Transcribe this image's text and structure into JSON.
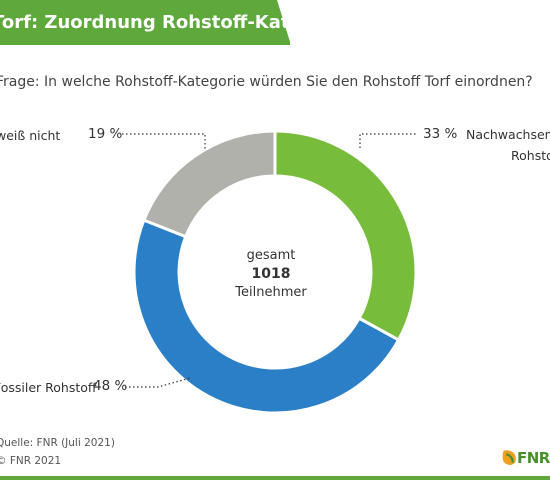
{
  "title": "Torf: Zuordnung Rohstoff-Kategorie",
  "question": "Frage: In welche Rohstoff-Kategorie würden Sie den Rohstoff Torf einordnen?",
  "center": {
    "line1": "gesamt",
    "line2": "1018",
    "line3": "Teilnehmer"
  },
  "labels": {
    "weiss_nicht": "weiß nicht",
    "nachwachsend_line1": "Nachwachsender",
    "nachwachsend_line2": "Rohstoff",
    "fossil": "Fossiler Rohstoff"
  },
  "source": "Quelle: FNR (Juli 2021)",
  "copyright": "© FNR 2021",
  "logo_text": "FNR",
  "colors": {
    "green": "#78bc3c",
    "blue": "#2a7fc7",
    "gray": "#b1b1ab",
    "brand": "#5ea83c"
  },
  "chart_data": {
    "type": "pie",
    "donut": true,
    "title": "Torf: Zuordnung Rohstoff-Kategorie",
    "categories": [
      "Nachwachsender Rohstoff",
      "Fossiler Rohstoff",
      "weiß nicht"
    ],
    "values": [
      33,
      48,
      19
    ],
    "value_labels": [
      "33 %",
      "48 %",
      "19 %"
    ],
    "total": 1018
  }
}
